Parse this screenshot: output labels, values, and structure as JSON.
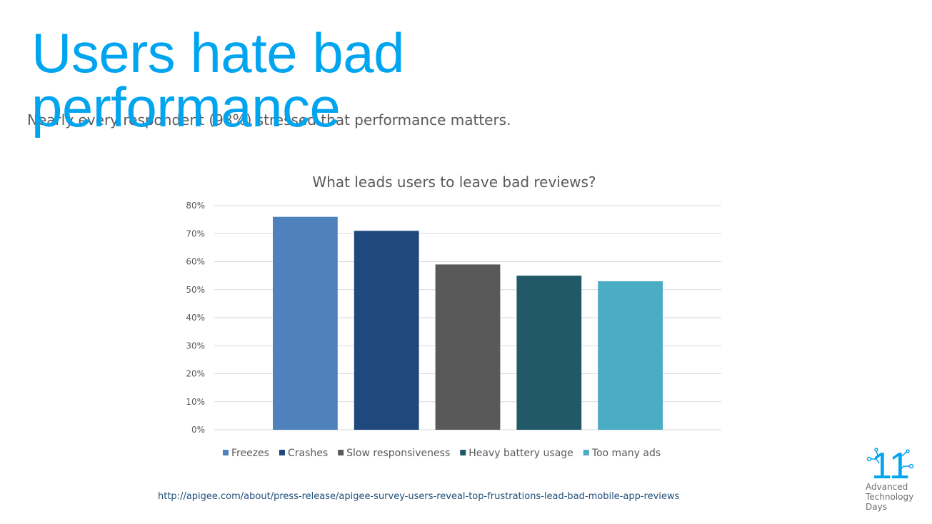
{
  "slide": {
    "title": "Users hate bad performance",
    "subtitle": "Nearly every respondent (98%) stressed that performance matters.",
    "source": "http://apigee.com/about/press-release/apigee-survey-users-reveal-top-frustrations-lead-bad-mobile-app-reviews",
    "logo": {
      "number": "11",
      "lines": [
        "Advanced",
        "Technology",
        "Days"
      ],
      "color": "#00a4ef"
    }
  },
  "chart_data": {
    "type": "bar",
    "title": "What leads users to leave bad reviews?",
    "xlabel": "",
    "ylabel": "",
    "ylim": [
      0,
      0.8
    ],
    "yticks": [
      "0%",
      "10%",
      "20%",
      "30%",
      "40%",
      "50%",
      "60%",
      "70%",
      "80%"
    ],
    "grid": true,
    "legend": "bottom",
    "series": [
      {
        "name": "Freezes",
        "value": 0.76,
        "color": "#4f81bd"
      },
      {
        "name": "Crashes",
        "value": 0.71,
        "color": "#1f497d"
      },
      {
        "name": "Slow responsiveness",
        "value": 0.59,
        "color": "#595959"
      },
      {
        "name": "Heavy battery usage",
        "value": 0.55,
        "color": "#215968"
      },
      {
        "name": "Too many ads",
        "value": 0.53,
        "color": "#4bacc6"
      }
    ]
  }
}
